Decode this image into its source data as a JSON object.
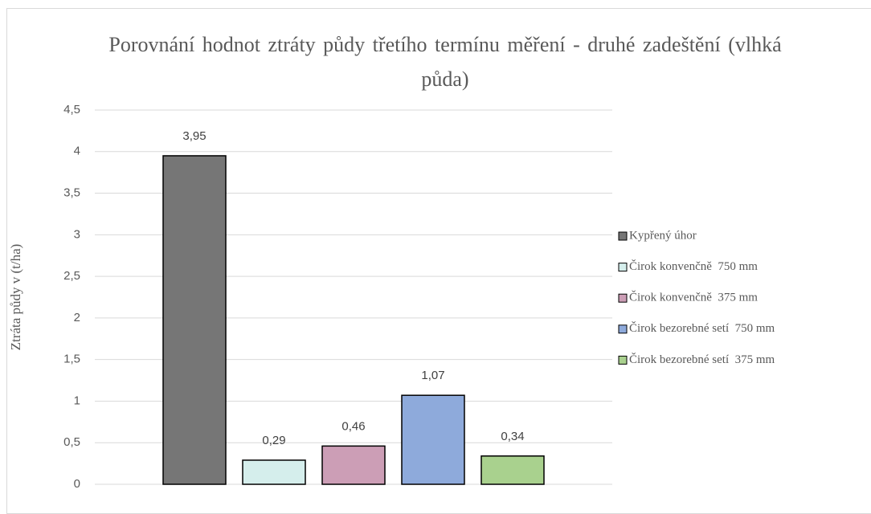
{
  "chart_data": {
    "type": "bar",
    "title": "Porovnání hodnot ztráty půdy třetího termínu měření - druhé zadeštění (vlhká půda)",
    "y_label": "Ztráta půdy v (t/ha)",
    "ylim": [
      0,
      4.5
    ],
    "yticks": [
      0,
      {
        "value": 0.5,
        "label": "0,5"
      },
      1,
      {
        "value": 1.5,
        "label": "1,5"
      },
      2,
      {
        "value": 2.5,
        "label": "2,5"
      },
      3,
      {
        "value": 3.5,
        "label": "3,5"
      },
      4,
      {
        "value": 4.5,
        "label": "4,5"
      }
    ],
    "grid": true,
    "legend": "right",
    "series": [
      {
        "name": "Kypřený úhor",
        "color": "#767676",
        "values": [
          3.95
        ],
        "value_labels": [
          "3,95"
        ]
      },
      {
        "name": "Čirok konvenčně  750 mm",
        "color": "#d5eeec",
        "values": [
          0.29
        ],
        "value_labels": [
          "0,29"
        ]
      },
      {
        "name": "Čirok konvenčně  375 mm",
        "color": "#cc9eb6",
        "values": [
          0.46
        ],
        "value_labels": [
          "0,46"
        ]
      },
      {
        "name": "Čirok bezorebné setí  750 mm",
        "color": "#8eaadb",
        "values": [
          1.07
        ],
        "value_labels": [
          "1,07"
        ]
      },
      {
        "name": "Čirok bezorebné setí  375 mm",
        "color": "#a9d18e",
        "values": [
          0.34
        ],
        "value_labels": [
          "0,34"
        ]
      }
    ]
  }
}
